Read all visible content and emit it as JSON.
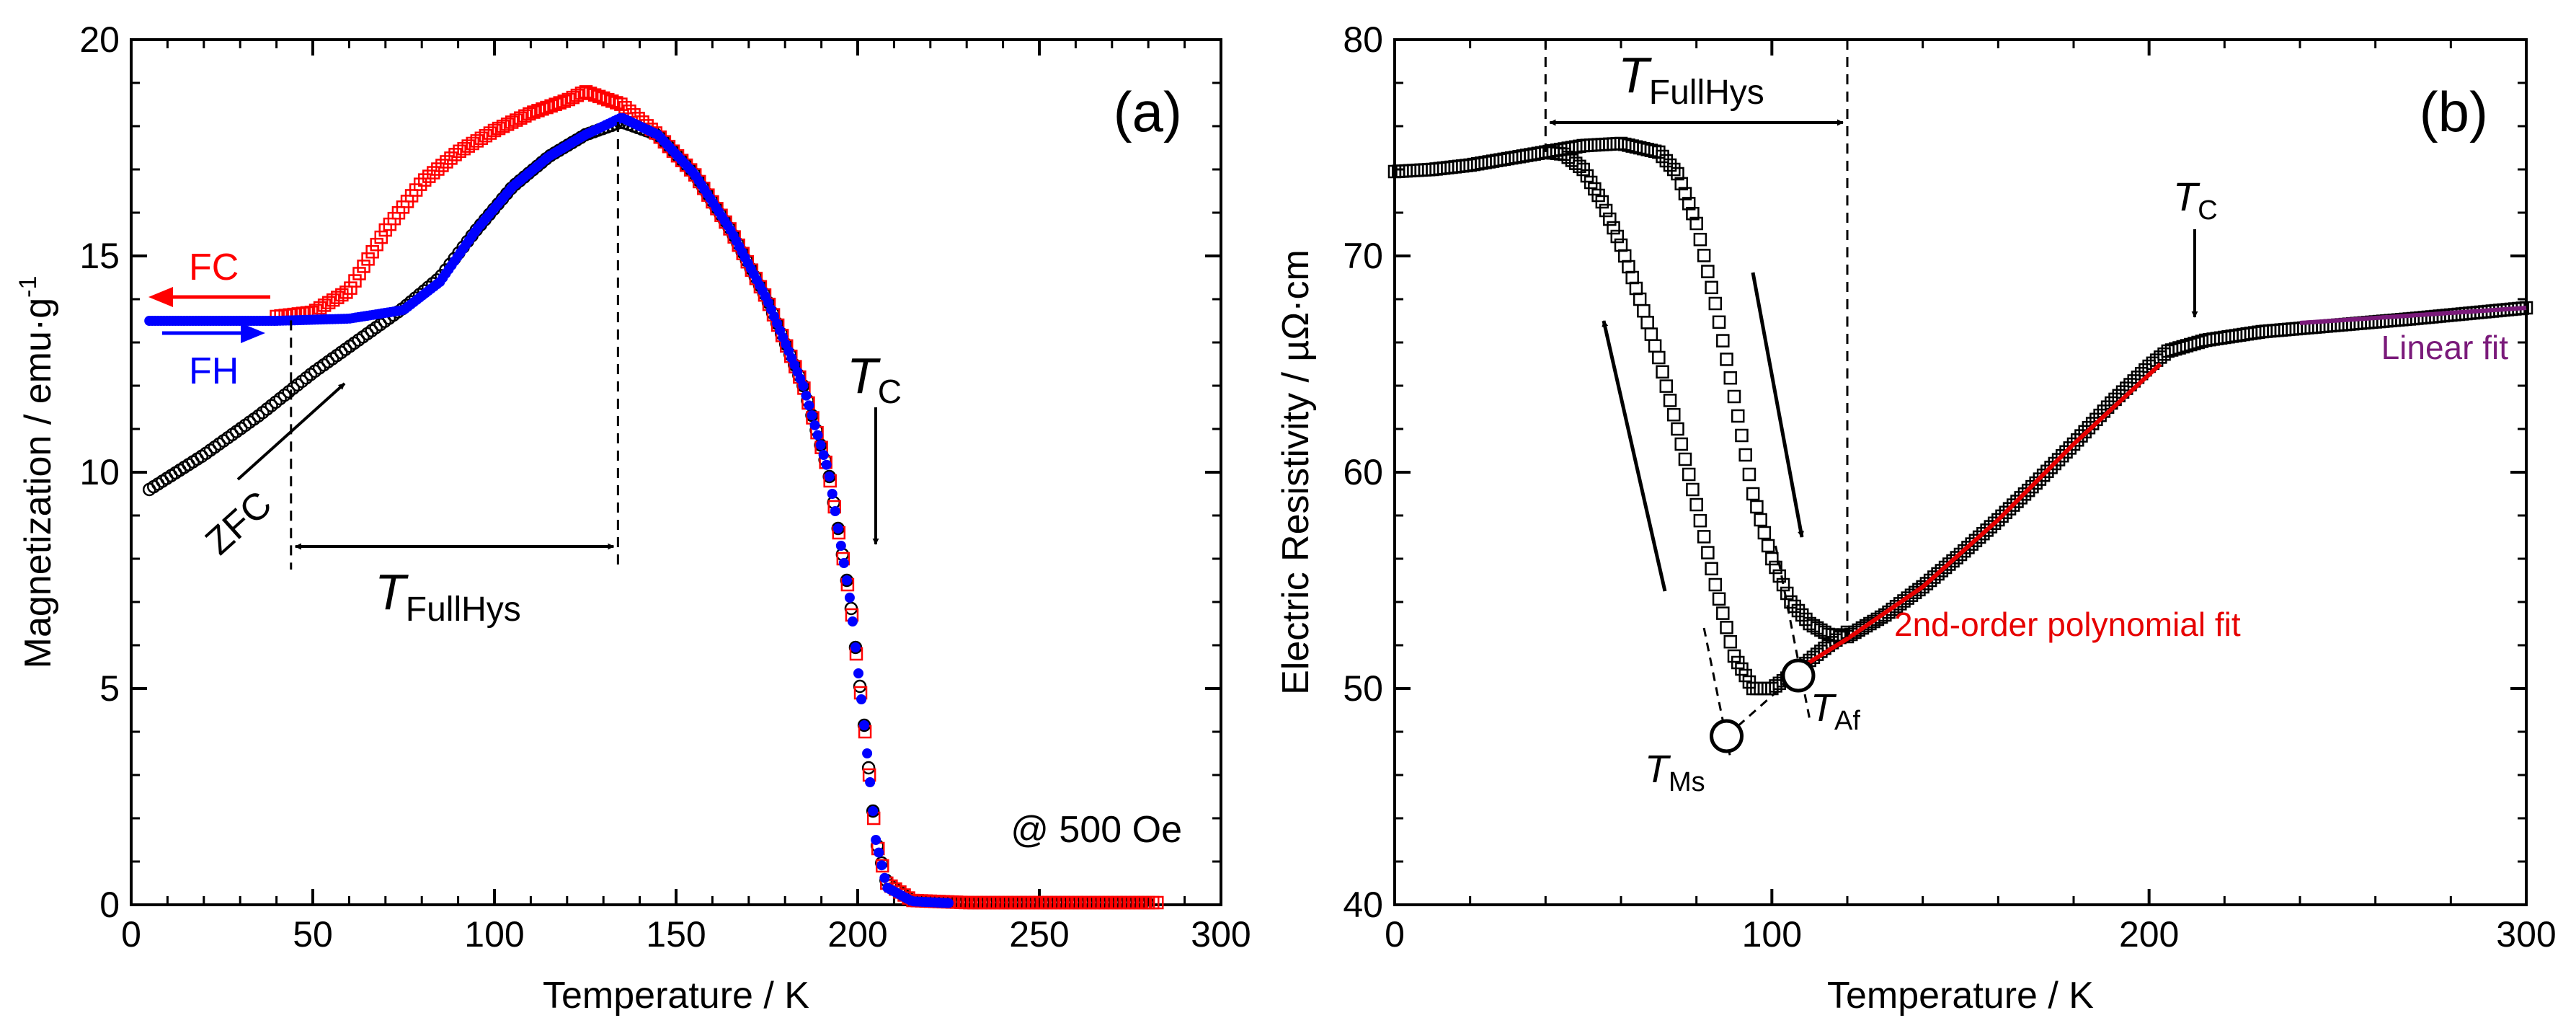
{
  "figure": {
    "panel_a": {
      "label": "(a)",
      "xlabel": "Temperature / K",
      "ylabel_main": "Magnetization / emu·g",
      "ylabel_sup": "-1",
      "field_note": "@ 500 Oe",
      "annotations": {
        "fc": "FC",
        "fh": "FH",
        "zfc": "ZFC",
        "tc_T": "T",
        "tc_sub": "C",
        "full_T": "T",
        "full_sub": "FullHys"
      }
    },
    "panel_b": {
      "label": "(b)",
      "xlabel": "Temperature / K",
      "ylabel": "Electric Resistivity / µΩ·cm",
      "annotations": {
        "full_T": "T",
        "full_sub": "FullHys",
        "tc_T": "T",
        "tc_sub": "C",
        "tms_T": "T",
        "tms_sub": "Ms",
        "taf_T": "T",
        "taf_sub": "Af",
        "poly_fit": "2nd-order polynomial fit",
        "linear_fit": "Linear fit"
      }
    }
  },
  "colors": {
    "fc": "#ff0000",
    "fh": "#0000ff",
    "zfc": "#000000",
    "poly": "#e60000",
    "linear": "#7a1a7a",
    "axis": "#000000"
  },
  "chart_data": [
    {
      "type": "scatter",
      "panel": "(a)",
      "title": "",
      "xlabel": "Temperature / K",
      "ylabel": "Magnetization / emu·g-1",
      "xlim": [
        0,
        300
      ],
      "ylim": [
        0,
        20
      ],
      "xticks": [
        0,
        50,
        100,
        150,
        200,
        250,
        300
      ],
      "yticks": [
        0,
        5,
        10,
        15,
        20
      ],
      "series": [
        {
          "name": "ZFC",
          "marker": "circle",
          "color": "#000000",
          "points": [
            [
              5,
              9.6
            ],
            [
              20,
              10.4
            ],
            [
              35,
              11.3
            ],
            [
              50,
              12.3
            ],
            [
              65,
              13.2
            ],
            [
              75,
              13.8
            ],
            [
              85,
              14.5
            ],
            [
              95,
              15.6
            ],
            [
              105,
              16.6
            ],
            [
              115,
              17.3
            ],
            [
              125,
              17.8
            ],
            [
              135,
              18.1
            ],
            [
              145,
              17.8
            ],
            [
              155,
              16.9
            ],
            [
              165,
              15.6
            ],
            [
              175,
              14.0
            ],
            [
              185,
              12.0
            ],
            [
              192,
              10.0
            ],
            [
              198,
              7.0
            ],
            [
              202,
              4.0
            ],
            [
              205,
              1.5
            ],
            [
              208,
              0.5
            ],
            [
              215,
              0.1
            ],
            [
              230,
              0.05
            ],
            [
              250,
              0.05
            ],
            [
              280,
              0.05
            ]
          ]
        },
        {
          "name": "FC",
          "marker": "square",
          "color": "#ff0000",
          "points": [
            [
              40,
              13.6
            ],
            [
              50,
              13.7
            ],
            [
              60,
              14.2
            ],
            [
              70,
              15.6
            ],
            [
              80,
              16.7
            ],
            [
              90,
              17.4
            ],
            [
              100,
              17.9
            ],
            [
              110,
              18.3
            ],
            [
              120,
              18.6
            ],
            [
              125,
              18.8
            ],
            [
              135,
              18.5
            ],
            [
              145,
              17.8
            ],
            [
              155,
              16.9
            ],
            [
              165,
              15.6
            ],
            [
              175,
              14.0
            ],
            [
              185,
              12.0
            ],
            [
              192,
              10.0
            ],
            [
              198,
              7.0
            ],
            [
              202,
              4.0
            ],
            [
              205,
              1.5
            ],
            [
              208,
              0.5
            ],
            [
              215,
              0.1
            ],
            [
              230,
              0.05
            ],
            [
              250,
              0.05
            ],
            [
              283,
              0.05
            ]
          ]
        },
        {
          "name": "FH",
          "marker": "dot",
          "color": "#0000ff",
          "points": [
            [
              5,
              13.5
            ],
            [
              40,
              13.5
            ],
            [
              60,
              13.55
            ],
            [
              75,
              13.75
            ],
            [
              85,
              14.4
            ],
            [
              95,
              15.6
            ],
            [
              105,
              16.6
            ],
            [
              115,
              17.3
            ],
            [
              125,
              17.8
            ],
            [
              135,
              18.2
            ],
            [
              145,
              17.8
            ],
            [
              155,
              16.9
            ],
            [
              165,
              15.6
            ],
            [
              175,
              14.0
            ],
            [
              185,
              12.0
            ],
            [
              192,
              10.0
            ],
            [
              198,
              7.0
            ],
            [
              202,
              4.0
            ],
            [
              205,
              1.5
            ],
            [
              208,
              0.4
            ],
            [
              215,
              0.08
            ],
            [
              225,
              0.04
            ]
          ]
        }
      ],
      "markers": {
        "T_FullHys_range": [
          44,
          134
        ],
        "T_C": 203
      }
    },
    {
      "type": "scatter",
      "panel": "(b)",
      "title": "",
      "xlabel": "Temperature / K",
      "ylabel": "Electric Resistivity / µΩ·cm",
      "xlim": [
        0,
        300
      ],
      "ylim": [
        40,
        80
      ],
      "xticks": [
        0,
        100,
        200,
        300
      ],
      "yticks": [
        40,
        50,
        60,
        70,
        80
      ],
      "series": [
        {
          "name": "Cooling",
          "marker": "square",
          "color": "#000000",
          "points": [
            [
              0,
              73.9
            ],
            [
              10,
              74.0
            ],
            [
              20,
              74.2
            ],
            [
              30,
              74.5
            ],
            [
              40,
              74.8
            ],
            [
              45,
              74.7
            ],
            [
              50,
              74.0
            ],
            [
              55,
              72.5
            ],
            [
              60,
              70.5
            ],
            [
              65,
              68.0
            ],
            [
              70,
              65.3
            ],
            [
              75,
              62.0
            ],
            [
              80,
              58.5
            ],
            [
              85,
              54.8
            ],
            [
              90,
              51.5
            ],
            [
              95,
              50.0
            ],
            [
              100,
              50.0
            ],
            [
              105,
              50.6
            ],
            [
              110,
              51.3
            ],
            [
              115,
              52.0
            ],
            [
              120,
              52.6
            ]
          ]
        },
        {
          "name": "Heating",
          "marker": "square",
          "color": "#000000",
          "points": [
            [
              40,
              74.8
            ],
            [
              50,
              75.1
            ],
            [
              60,
              75.2
            ],
            [
              70,
              74.8
            ],
            [
              75,
              73.8
            ],
            [
              80,
              71.5
            ],
            [
              85,
              67.8
            ],
            [
              90,
              63.5
            ],
            [
              95,
              59.0
            ],
            [
              100,
              56.0
            ],
            [
              105,
              54.0
            ],
            [
              110,
              53.0
            ],
            [
              115,
              52.5
            ],
            [
              120,
              52.4
            ],
            [
              130,
              53.4
            ],
            [
              140,
              54.7
            ],
            [
              150,
              56.2
            ],
            [
              160,
              57.8
            ],
            [
              170,
              59.5
            ],
            [
              180,
              61.3
            ],
            [
              190,
              63.2
            ],
            [
              200,
              64.9
            ],
            [
              205,
              65.6
            ],
            [
              215,
              66.1
            ],
            [
              230,
              66.5
            ],
            [
              250,
              66.8
            ],
            [
              270,
              67.1
            ],
            [
              300,
              67.6
            ]
          ]
        },
        {
          "name": "2nd-order polynomial fit",
          "marker": "line",
          "color": "#e60000",
          "points": [
            [
              108,
              51.0
            ],
            [
              120,
              52.3
            ],
            [
              140,
              54.7
            ],
            [
              160,
              57.8
            ],
            [
              180,
              61.3
            ],
            [
              203,
              65.0
            ]
          ]
        },
        {
          "name": "Linear fit",
          "marker": "line",
          "color": "#7a1a7a",
          "points": [
            [
              240,
              66.9
            ],
            [
              300,
              67.6
            ]
          ]
        }
      ],
      "markers": {
        "T_FullHys_range": [
          40,
          120
        ],
        "T_C": 205,
        "T_Ms": [
          88,
          47.8
        ],
        "T_Af": [
          107,
          50.6
        ]
      }
    }
  ]
}
